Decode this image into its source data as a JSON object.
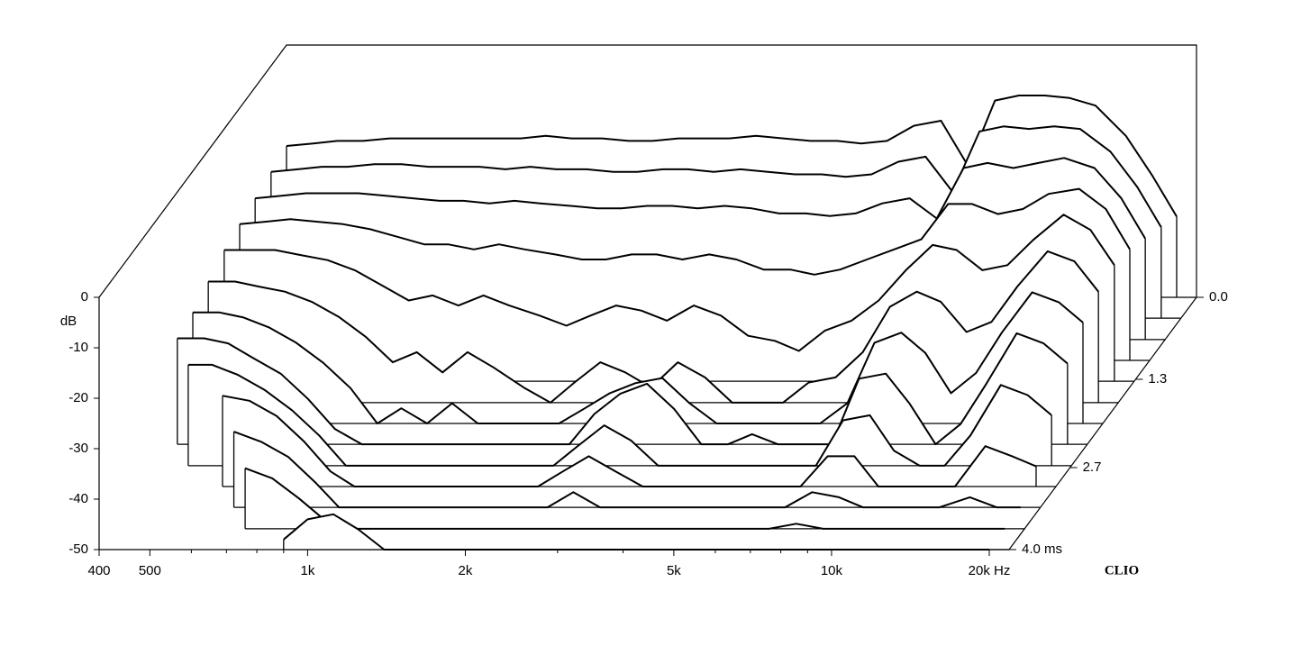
{
  "chart_data": {
    "type": "waterfall",
    "ylabel": "dB",
    "brand": "CLIO",
    "color": "#000000",
    "xscale": "log",
    "x": [
      400,
      450,
      500,
      560,
      630,
      710,
      800,
      900,
      1000,
      1120,
      1250,
      1400,
      1600,
      1800,
      2000,
      2240,
      2500,
      2800,
      3150,
      3550,
      4000,
      4500,
      5000,
      5600,
      6300,
      7100,
      8000,
      9000,
      10000,
      11200,
      12500,
      14000,
      16000,
      18000,
      20000
    ],
    "xlim": [
      400,
      20000
    ],
    "xticks": [
      400,
      500,
      {
        "value": 1000,
        "label": "1k"
      },
      {
        "value": 2000,
        "label": "2k"
      },
      {
        "value": 5000,
        "label": "5k"
      },
      {
        "value": 10000,
        "label": "10k"
      },
      {
        "value": 20000,
        "label": "20k Hz"
      }
    ],
    "xminorticks": [
      600,
      700,
      800,
      900,
      3000,
      4000,
      6000,
      7000,
      8000,
      9000
    ],
    "ylim": [
      -50,
      0
    ],
    "yticks": [
      0,
      -10,
      -20,
      -30,
      -40,
      -50
    ],
    "zlim": [
      0,
      4
    ],
    "zticks": [
      {
        "value": 0,
        "label": "0.0"
      },
      1.3,
      2.7,
      {
        "value": 4,
        "label": "4.0 ms"
      }
    ],
    "series": [
      {
        "z": 0,
        "values": [
          -20,
          -19.5,
          -19,
          -19,
          -18.5,
          -18.5,
          -18.5,
          -18.5,
          -18.5,
          -18.5,
          -18,
          -18.5,
          -18.5,
          -19,
          -19,
          -18.5,
          -18.5,
          -18.5,
          -18,
          -18.5,
          -19,
          -19,
          -19.5,
          -19,
          -16,
          -15,
          -24,
          -11,
          -10,
          -10,
          -10.5,
          -12,
          -18,
          -26,
          -34
        ]
      },
      {
        "z": 0.33,
        "values": [
          -21,
          -20.5,
          -20,
          -20,
          -19.5,
          -19.5,
          -20,
          -20,
          -20,
          -20.5,
          -20,
          -20.5,
          -20.5,
          -21,
          -21,
          -20.5,
          -20.5,
          -21,
          -20.5,
          -21,
          -21.5,
          -21.5,
          -22,
          -21.5,
          -19,
          -18,
          -25,
          -13,
          -12,
          -12.5,
          -12,
          -12.5,
          -17,
          -24,
          -32
        ]
      },
      {
        "z": 0.67,
        "values": [
          -22,
          -21.5,
          -21,
          -21,
          -21,
          -21.5,
          -22,
          -22.5,
          -22.5,
          -23,
          -22.5,
          -23,
          -23.5,
          -24,
          -24,
          -23.5,
          -23.5,
          -24,
          -23.5,
          -24,
          -25,
          -25,
          -25.5,
          -25,
          -23,
          -22,
          -26,
          -16,
          -15,
          -16,
          -15,
          -14,
          -16,
          -22,
          -30
        ]
      },
      {
        "z": 1,
        "values": [
          -23,
          -22.5,
          -22,
          -22.5,
          -23,
          -24,
          -25.5,
          -27,
          -27,
          -28,
          -27,
          -28,
          -29,
          -30,
          -30,
          -29,
          -29,
          -30,
          -29,
          -30,
          -32,
          -32,
          -33,
          -32,
          -30,
          -28,
          -26,
          -19,
          -19,
          -21,
          -20,
          -17,
          -16,
          -20,
          -28
        ]
      },
      {
        "z": 1.33,
        "values": [
          -24,
          -24,
          -24,
          -25,
          -26,
          -28,
          -31,
          -34,
          -33,
          -35,
          -33,
          -35,
          -37,
          -39,
          -37,
          -35,
          -36,
          -38,
          -35,
          -37,
          -41,
          -42,
          -44,
          -40,
          -38,
          -34,
          -28,
          -23,
          -24,
          -28,
          -27,
          -22,
          -17,
          -20,
          -27
        ]
      },
      {
        "z": 1.67,
        "values": [
          -26,
          -26,
          -27,
          -28,
          -30,
          -33,
          -37,
          -42,
          -40,
          -44,
          -40,
          -43,
          -47,
          -50,
          -46,
          -42,
          -44,
          -47,
          -42,
          -45,
          -50,
          -50,
          -50,
          -46,
          -45,
          -40,
          -31,
          -28,
          -30,
          -36,
          -34,
          -27,
          -20,
          -22,
          -28
        ]
      },
      {
        "z": 2,
        "values": [
          -28,
          -28,
          -29,
          -31,
          -34,
          -38,
          -43,
          -50,
          -47,
          -50,
          -46,
          -50,
          -50,
          -50,
          -50,
          -47,
          -44,
          -42,
          -41,
          -46,
          -50,
          -50,
          -50,
          -50,
          -50,
          -46,
          -34,
          -32,
          -36,
          -44,
          -40,
          -32,
          -24,
          -26,
          -30
        ]
      },
      {
        "z": 2.33,
        "values": [
          -29,
          -29,
          -30,
          -33,
          -36,
          -41,
          -47,
          -50,
          -50,
          -50,
          -50,
          -50,
          -50,
          -50,
          -50,
          -50,
          -44,
          -40,
          -38,
          -43,
          -50,
          -50,
          -48,
          -50,
          -50,
          -50,
          -37,
          -36,
          -42,
          -50,
          -46,
          -38,
          -28,
          -30,
          -34
        ]
      },
      {
        "z": 2.67,
        "values": [
          null,
          -30,
          -30,
          -32,
          -35,
          -39,
          -44,
          -50,
          -50,
          -50,
          -50,
          -50,
          -50,
          -50,
          -50,
          -50,
          -46,
          -42,
          -45,
          -50,
          -50,
          -50,
          -50,
          -50,
          -50,
          -50,
          -41,
          -40,
          -47,
          -50,
          -50,
          -44,
          -34,
          -36,
          -40
        ]
      },
      {
        "z": 3,
        "values": [
          null,
          null,
          null,
          -32,
          -33,
          -36,
          -41,
          -47,
          -50,
          -50,
          -50,
          -50,
          -50,
          -50,
          -50,
          -50,
          -47,
          -44,
          -47,
          -50,
          -50,
          -50,
          -50,
          -50,
          -50,
          -50,
          -44,
          -44,
          -50,
          -50,
          -50,
          -50,
          -42,
          -44,
          -46
        ]
      },
      {
        "z": 3.33,
        "values": [
          null,
          null,
          null,
          null,
          -35,
          -37,
          -40,
          -45,
          -50,
          -50,
          -50,
          -50,
          -50,
          -50,
          -50,
          -50,
          -50,
          -47,
          -50,
          -50,
          -50,
          -50,
          -50,
          -50,
          -50,
          -50,
          -47,
          -48,
          -50,
          -50,
          -50,
          -50,
          -48,
          -50,
          -50
        ]
      },
      {
        "z": 3.67,
        "values": [
          null,
          null,
          null,
          null,
          null,
          -38,
          -40,
          -44,
          -48,
          -50,
          -50,
          -50,
          -50,
          -50,
          -50,
          -50,
          -50,
          -50,
          -50,
          -50,
          -50,
          -50,
          -50,
          -50,
          -50,
          -50,
          -49,
          -50,
          -50,
          -50,
          -50,
          -50,
          -50,
          -50,
          -50
        ]
      },
      {
        "z": 4,
        "values": [
          null,
          null,
          null,
          null,
          null,
          null,
          null,
          -48,
          -44,
          -43,
          -46,
          -50,
          -50,
          -50,
          -50,
          -50,
          -50,
          -50,
          -50,
          -50,
          -50,
          -50,
          -50,
          -50,
          -50,
          -50,
          -50,
          -50,
          -50,
          -50,
          -50,
          -50,
          -50,
          -50,
          -50
        ]
      }
    ]
  }
}
